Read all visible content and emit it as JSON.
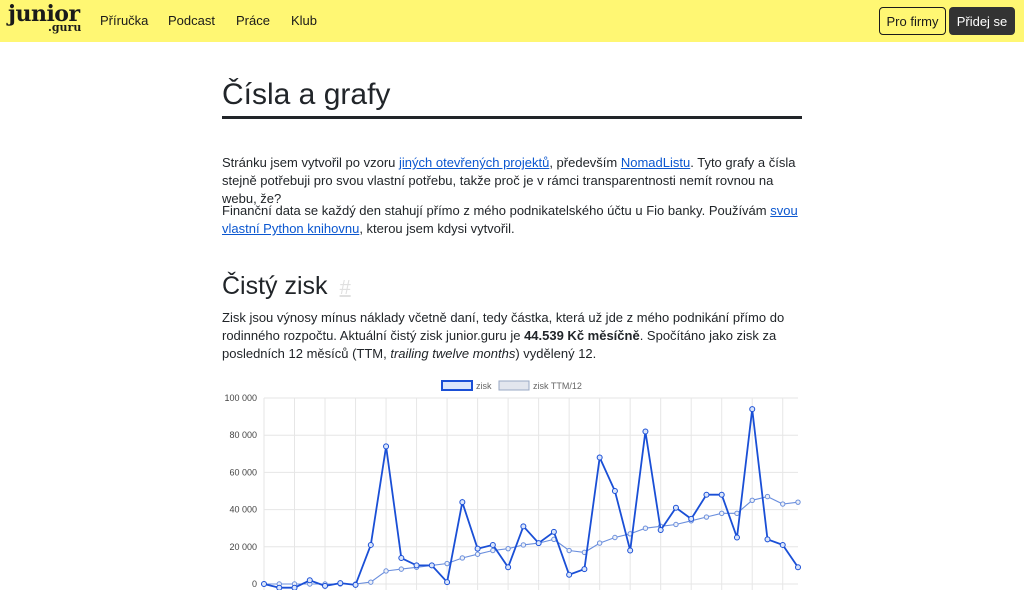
{
  "header": {
    "logo_line1": "junior",
    "logo_line2": ".guru",
    "nav": [
      "Příručka",
      "Podcast",
      "Práce",
      "Klub"
    ],
    "btn_for_companies": "Pro firmy",
    "btn_join": "Přidej se"
  },
  "page": {
    "title": "Čísla a grafy",
    "intro": {
      "p1_a": "Stránku jsem vytvořil po vzoru ",
      "p1_link1": "jiných otevřených projektů",
      "p1_b": ", především ",
      "p1_link2": "NomadListu",
      "p1_c": ". Tyto grafy a čísla stejně potřebuji pro svou vlastní potřebu, takže proč je v rámci transparentnosti nemít rovnou na webu, že?",
      "p2_a": "Finanční data se každý den stahují přímo z mého podnikatelského účtu u Fio banky. Používám ",
      "p2_link": "svou vlastní Python knihovnu",
      "p2_b": ", kterou jsem kdysi vytvořil."
    },
    "section": {
      "title": "Čistý zisk",
      "anchor": "#",
      "p_a": "Zisk jsou výnosy mínus náklady včetně daní, tedy částka, která už jde z mého podnikání přímo do rodinného rozpočtu. Aktuální čistý zisk junior.guru je ",
      "p_bold": "44.539 Kč měsíčně",
      "p_b": ". Spočítáno jako zisk za posledních 12 měsíců (TTM, ",
      "p_italic": "trailing twelve months",
      "p_c": ") vydělený 12."
    }
  },
  "chart_data": {
    "type": "line",
    "ylim": [
      0,
      100000
    ],
    "yticks": [
      "100 000",
      "80 000",
      "60 000",
      "40 000",
      "20 000",
      "0"
    ],
    "ytick_values": [
      100000,
      80000,
      60000,
      40000,
      20000,
      0
    ],
    "legend": [
      "zisk",
      "zisk TTM/12"
    ],
    "legend_position": "top",
    "grid": true,
    "colors": {
      "zisk": "#1a4fd6",
      "ttm": "#6b8fdd"
    },
    "series": [
      {
        "name": "zisk",
        "values": [
          0,
          -2000,
          -2000,
          2000,
          -1000,
          500,
          -500,
          21000,
          74000,
          14000,
          10000,
          10000,
          1000,
          44000,
          19000,
          21000,
          9000,
          31000,
          22000,
          28000,
          5000,
          8000,
          68000,
          50000,
          18000,
          82000,
          29000,
          41000,
          35000,
          48000,
          48000,
          25000,
          94000,
          24000,
          21000,
          9000
        ]
      },
      {
        "name": "zisk TTM/12",
        "values": [
          0,
          0,
          0,
          0,
          0,
          0,
          0,
          1000,
          7000,
          8000,
          9000,
          10000,
          11000,
          14000,
          16000,
          18000,
          19000,
          21000,
          22000,
          24000,
          18000,
          17000,
          22000,
          25000,
          27000,
          30000,
          31000,
          32000,
          34000,
          36000,
          38000,
          38000,
          45000,
          47000,
          43000,
          44000
        ]
      }
    ]
  }
}
